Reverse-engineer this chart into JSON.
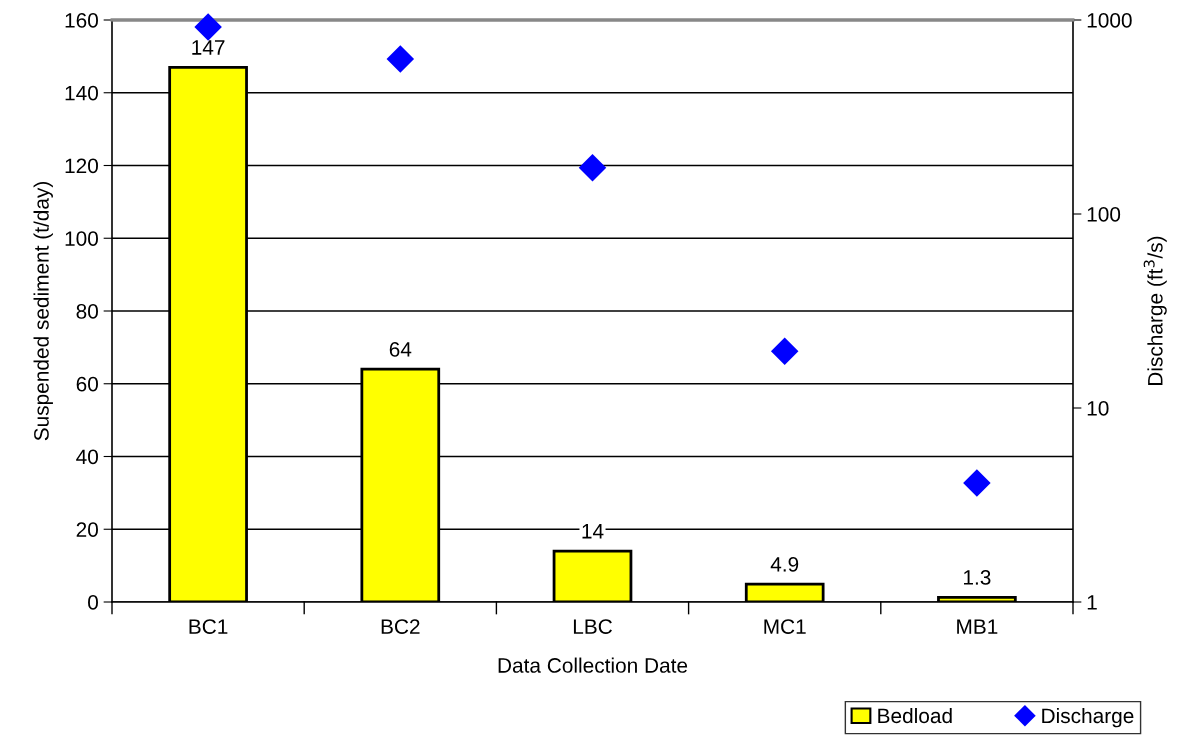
{
  "chart_data": {
    "type": "bar",
    "xlabel": "Data Collection Date",
    "ylabel": "Suspended sediment (t/day)",
    "y2label": "Discharge (ft$^{3}$/s)",
    "categories": [
      "BC1",
      "BC2",
      "LBC",
      "MC1",
      "MB1"
    ],
    "series": [
      {
        "name": "Bedload",
        "color": "#ffff00",
        "values": [
          147,
          64,
          14,
          4.9,
          1.3
        ],
        "value_labels": [
          "147",
          "64",
          "14",
          "4.9",
          "1.3"
        ]
      },
      {
        "name": "Discharge",
        "type": "scatter",
        "axis": "y2",
        "color": "#0000ff",
        "values": [
          920,
          630,
          173,
          19.6,
          4.1
        ]
      }
    ],
    "ylim": [
      0,
      160
    ],
    "yticks": [
      0,
      20,
      40,
      60,
      80,
      100,
      120,
      140,
      160
    ],
    "log": "y2",
    "y2lim": [
      1,
      1000
    ],
    "y2ticks": [
      1,
      10,
      100,
      1000
    ],
    "grid": "y",
    "legend": "bottom right",
    "marker": "diamond"
  }
}
